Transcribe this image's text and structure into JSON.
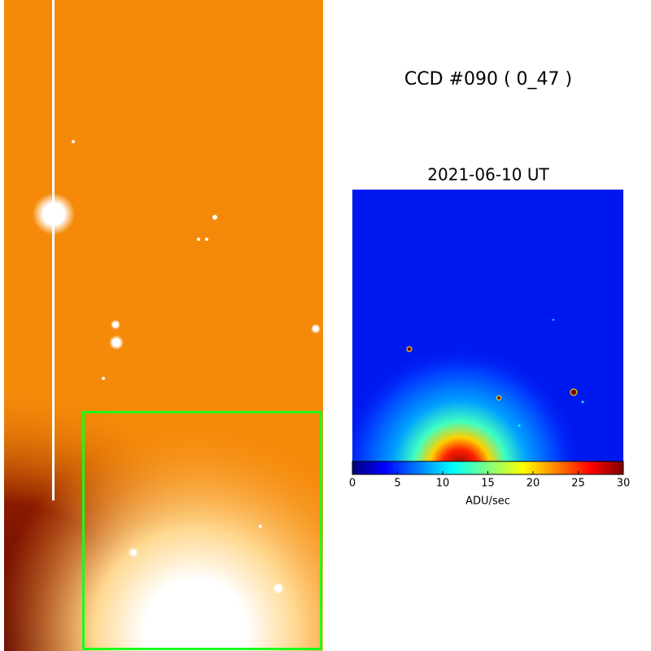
{
  "header": {
    "title": "CCD #090 ( 0_47 )",
    "date": "2021-06-10 UT"
  },
  "colorbar": {
    "label": "ADU/sec",
    "xlim": [
      0,
      30
    ],
    "xticks": [
      0,
      5,
      10,
      15,
      20,
      25,
      30
    ]
  }
}
